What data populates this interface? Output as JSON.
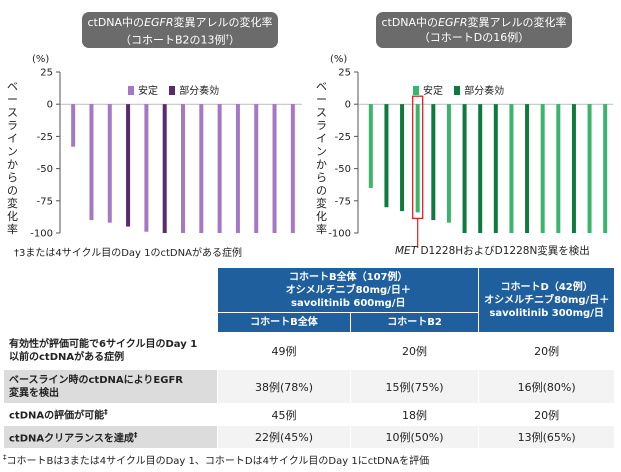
{
  "charts": {
    "left": {
      "title_line1_pre": "ctDNA中の",
      "title_line1_em": "EGFR",
      "title_line1_post": "変異アレルの変化率",
      "title_line2": "（コホートB2の13例",
      "title_line2_sup": "†",
      "title_line2_end": "）",
      "footnote": "†3または4サイクル目のDay 1のctDNAがある症例"
    },
    "right": {
      "title_line1_pre": "ctDNA中の",
      "title_line1_em": "EGFR",
      "title_line1_post": "変異アレルの変化率",
      "title_line2": "（コホートDの16例）",
      "annotation_em": "MET",
      "annotation_rest": " D1228HおよびD1228N変異を検出"
    },
    "unit": "(%)",
    "ylabel": "ベースラインからの変化率",
    "legend": {
      "stable": "安定",
      "partial": "部分奏効"
    }
  },
  "chart_data": [
    {
      "type": "bar",
      "title": "ctDNA中のEGFR変異アレルの変化率（コホートB2の13例†）",
      "ylabel": "ベースラインからの変化率",
      "unit": "(%)",
      "ylim": [
        -100,
        25
      ],
      "yticks": [
        25,
        0,
        -25,
        -50,
        -75,
        -100
      ],
      "legend_position": "top-center",
      "series": [
        {
          "name": "安定",
          "color": "#a678c4"
        },
        {
          "name": "部分奏効",
          "color": "#5a2a6e"
        }
      ],
      "bars": [
        {
          "value": -33,
          "series": "安定"
        },
        {
          "value": -90,
          "series": "安定"
        },
        {
          "value": -92,
          "series": "安定"
        },
        {
          "value": -95,
          "series": "部分奏効"
        },
        {
          "value": -99,
          "series": "安定"
        },
        {
          "value": -100,
          "series": "部分奏効"
        },
        {
          "value": -100,
          "series": "安定"
        },
        {
          "value": -100,
          "series": "安定"
        },
        {
          "value": -100,
          "series": "安定"
        },
        {
          "value": -100,
          "series": "安定"
        },
        {
          "value": -100,
          "series": "安定"
        },
        {
          "value": -100,
          "series": "安定"
        },
        {
          "value": -100,
          "series": "安定"
        }
      ]
    },
    {
      "type": "bar",
      "title": "ctDNA中のEGFR変異アレルの変化率（コホートDの16例）",
      "ylabel": "ベースラインからの変化率",
      "unit": "(%)",
      "ylim": [
        -100,
        25
      ],
      "yticks": [
        25,
        0,
        -25,
        -50,
        -75,
        -100
      ],
      "legend_position": "top-center",
      "series": [
        {
          "name": "安定",
          "color": "#3bb56b"
        },
        {
          "name": "部分奏効",
          "color": "#0f7a3d"
        }
      ],
      "bars": [
        {
          "value": -65,
          "series": "安定"
        },
        {
          "value": -80,
          "series": "部分奏効"
        },
        {
          "value": -83,
          "series": "部分奏効"
        },
        {
          "value": -84,
          "series": "安定",
          "highlight": true
        },
        {
          "value": -90,
          "series": "部分奏効"
        },
        {
          "value": -92,
          "series": "安定"
        },
        {
          "value": -100,
          "series": "部分奏効"
        },
        {
          "value": -100,
          "series": "部分奏効"
        },
        {
          "value": -100,
          "series": "部分奏効"
        },
        {
          "value": -100,
          "series": "安定"
        },
        {
          "value": -100,
          "series": "部分奏効"
        },
        {
          "value": -100,
          "series": "安定"
        },
        {
          "value": -100,
          "series": "安定"
        },
        {
          "value": -100,
          "series": "部分奏効"
        },
        {
          "value": -100,
          "series": "安定"
        },
        {
          "value": -100,
          "series": "安定"
        }
      ]
    }
  ],
  "table": {
    "head": {
      "cohortB_line1": "コホートB全体（107例）",
      "cohortB_line2": "オシメルチニブ80mg/日＋",
      "cohortB_line3": "savolitinib 600mg/日",
      "cohortD_line1": "コホートD（42例）",
      "cohortD_line2": "オシメルチニブ80mg/日＋",
      "cohortD_line3": "savolitinib 300mg/日",
      "sub_all": "コホートB全体",
      "sub_b2": "コホートB2"
    },
    "rows": [
      {
        "label1": "有効性が評価可能で6サイクル目のDay 1",
        "label2": "以前のctDNAがある症例",
        "sup": "",
        "all": "49例",
        "b2": "20例",
        "d": "20例"
      },
      {
        "label1": "ベースライン時のctDNAによりEGFR",
        "label2": "変異を検出",
        "sup": "",
        "all": "38例(78%)",
        "b2": "15例(75%)",
        "d": "16例(80%)"
      },
      {
        "label1": "ctDNAの評価が可能",
        "label2": "",
        "sup": "‡",
        "all": "45例",
        "b2": "18例",
        "d": "20例"
      },
      {
        "label1": "ctDNAクリアランスを達成",
        "label2": "",
        "sup": "‡",
        "all": "22例(45%)",
        "b2": "10例(50%)",
        "d": "13例(65%)"
      }
    ],
    "footnote_sup": "‡",
    "footnote": "コホートBは3または4サイクル目のDay 1、コホートDは4サイクル目のDay 1にctDNAを評価"
  }
}
